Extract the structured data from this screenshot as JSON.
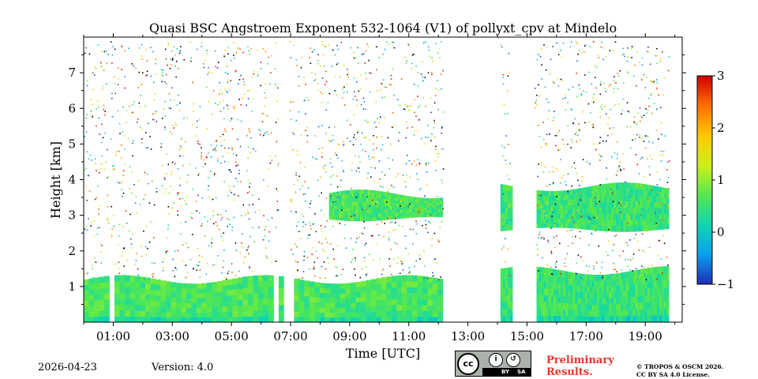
{
  "chart_data": {
    "type": "heatmap",
    "title": "Quasi BSC Angstroem Exponent 532-1064 (V1) of pollyxt_cpv at Mindelo",
    "xlabel": "Time [UTC]",
    "ylabel": "Height [km]",
    "xlim": [
      0.0,
      20.25
    ],
    "ylim": [
      0,
      8
    ],
    "x_ticks": [
      1,
      3,
      5,
      7,
      9,
      11,
      13,
      15,
      17,
      19
    ],
    "x_tick_labels": [
      "01:00",
      "03:00",
      "05:00",
      "07:00",
      "09:00",
      "11:00",
      "13:00",
      "15:00",
      "17:00",
      "19:00"
    ],
    "y_ticks": [
      1,
      2,
      3,
      4,
      5,
      6,
      7
    ],
    "y_tick_labels": [
      "1",
      "2",
      "3",
      "4",
      "5",
      "6",
      "7"
    ],
    "colorbar": {
      "min": -1,
      "max": 3,
      "ticks": [
        -1,
        0,
        1,
        2,
        3
      ],
      "tick_labels": [
        "−1",
        "0",
        "1",
        "2",
        "3"
      ],
      "colormap": [
        "#1d2db8",
        "#0a9ff0",
        "#0fd6b0",
        "#54e84e",
        "#cfef1a",
        "#ffc800",
        "#ff6d00",
        "#d10000"
      ]
    },
    "data_gaps_hours": [
      [
        0.6,
        0.62
      ],
      [
        0.85,
        0.9
      ],
      [
        2.45,
        2.6
      ],
      [
        3.7,
        3.78
      ],
      [
        5.8,
        5.86
      ],
      [
        6.35,
        6.45
      ],
      [
        6.6,
        6.95
      ],
      [
        12.15,
        14.1
      ],
      [
        14.45,
        15.25
      ],
      [
        19.8,
        20.25
      ]
    ],
    "layers": [
      {
        "name": "boundary layer",
        "start_h": 0.0,
        "end_h": 12.15,
        "base_km": 0.0,
        "top_km": 1.2,
        "typical_value": 0.6
      },
      {
        "name": "boundary layer (afternoon)",
        "start_h": 14.1,
        "end_h": 19.8,
        "base_km": 0.0,
        "top_km": 1.45,
        "typical_value": 0.5
      },
      {
        "name": "dust layer",
        "start_h": 8.3,
        "end_h": 12.15,
        "base_km": 2.9,
        "top_km": 3.6,
        "typical_value": 0.6
      },
      {
        "name": "dust layer (afternoon)",
        "start_h": 14.1,
        "end_h": 19.8,
        "base_km": 2.6,
        "top_km": 3.8,
        "typical_value": 0.5
      }
    ]
  },
  "footer": {
    "date": "2026-04-23",
    "version": "Version: 4.0",
    "preliminary_line1": "Preliminary",
    "preliminary_line2": "Results.",
    "copyright_line1": "© TROPOS & OSCM 2026.",
    "copyright_line2": "CC BY SA 4.0 License.",
    "license_badge": {
      "cc": "cc",
      "by": "BY",
      "sa": "SA"
    }
  }
}
